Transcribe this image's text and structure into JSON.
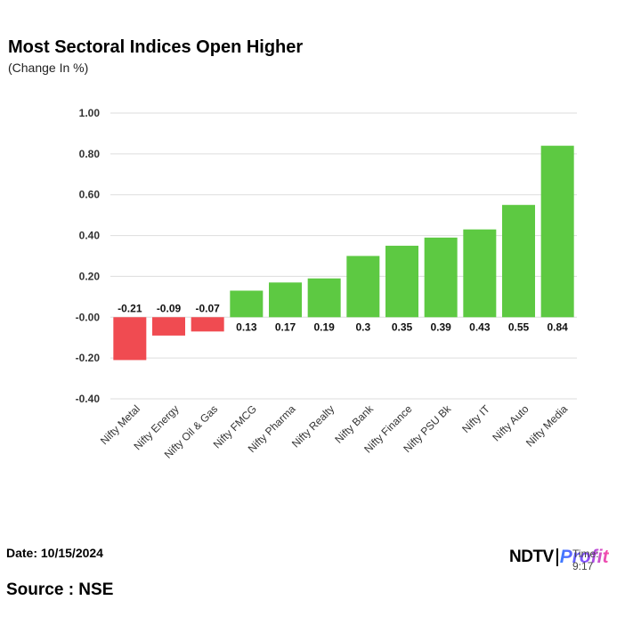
{
  "header": {
    "title": "Most Sectoral Indices Open Higher",
    "subtitle": "(Change In %)"
  },
  "footer": {
    "date": "Date: 10/15/2024",
    "source": "Source : NSE",
    "logo_ndtv": "NDTV",
    "logo_profit": "Profit",
    "logo_time": "Time: 9:17"
  },
  "colors": {
    "positive": "#5dc942",
    "negative": "#f04b51",
    "grid": "#dddddd"
  },
  "chart_data": {
    "type": "bar",
    "title": "Most Sectoral Indices Open Higher",
    "ylabel": "(Change In %)",
    "xlabel": "",
    "ylim": [
      -0.4,
      1.0
    ],
    "yticks": [
      1.0,
      0.8,
      0.6,
      0.4,
      0.2,
      0.0,
      -0.2,
      -0.4
    ],
    "ytick_labels": [
      "1.00",
      "0.80",
      "0.60",
      "0.40",
      "0.20",
      "-0.00",
      "-0.20",
      "-0.40"
    ],
    "grid": true,
    "categories": [
      "Nifty Metal",
      "Nifty Energy",
      "Nifty Oil & Gas",
      "Nifty FMCG",
      "Nifty Pharma",
      "Nifty Realty",
      "Nifty Bank",
      "Nifty Finance",
      "Nifty PSU Bk",
      "Nifty IT",
      "Nifty Auto",
      "Nifty Media"
    ],
    "values": [
      -0.21,
      -0.09,
      -0.07,
      0.13,
      0.17,
      0.19,
      0.3,
      0.35,
      0.39,
      0.43,
      0.55,
      0.84
    ],
    "data_labels": [
      "-0.21",
      "-0.09",
      "-0.07",
      "0.13",
      "0.17",
      "0.19",
      "0.3",
      "0.35",
      "0.39",
      "0.43",
      "0.55",
      "0.84"
    ]
  }
}
